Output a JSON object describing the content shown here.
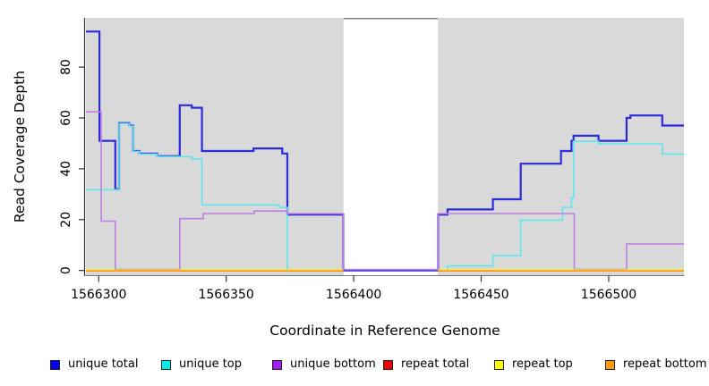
{
  "chart_data": {
    "type": "line",
    "subtype": "step-coverage",
    "title": "",
    "xlabel": "Coordinate in Reference Genome",
    "ylabel": "Read Coverage Depth",
    "xlim": [
      1566295,
      1566529.5
    ],
    "ylim": [
      0,
      99
    ],
    "grid": false,
    "legend_position": "bottom",
    "plot_bg": "#d9d9d9",
    "axis_color": "#333333",
    "x_ticks": [
      {
        "value": 1566300,
        "label": "1566300"
      },
      {
        "value": 1566350,
        "label": "1566350"
      },
      {
        "value": 1566400,
        "label": "1566400"
      },
      {
        "value": 1566450,
        "label": "1566450"
      },
      {
        "value": 1566500,
        "label": "1566500"
      }
    ],
    "y_ticks": [
      {
        "value": 0,
        "label": "0"
      },
      {
        "value": 20,
        "label": "20"
      },
      {
        "value": 40,
        "label": "40"
      },
      {
        "value": 60,
        "label": "60"
      },
      {
        "value": 80,
        "label": "80"
      }
    ],
    "gap_region": {
      "x0": 1566396,
      "x1": 1566433,
      "fill": "#ffffff",
      "top_border": "#808080"
    },
    "series": [
      {
        "name": "unique total",
        "color": "#2b2bdc",
        "width": 2.2,
        "bias": 0,
        "segments": [
          {
            "points": [
              [
                1566295,
                94
              ],
              [
                1566300.3,
                51
              ],
              [
                1566306.5,
                32
              ],
              [
                1566308,
                58
              ],
              [
                1566312,
                57
              ],
              [
                1566313.5,
                47
              ],
              [
                1566316,
                46
              ],
              [
                1566323,
                45
              ],
              [
                1566331.8,
                65
              ],
              [
                1566336.5,
                64
              ],
              [
                1566340.5,
                47
              ],
              [
                1566360.7,
                48
              ],
              [
                1566372,
                46
              ],
              [
                1566374,
                22
              ],
              [
                1566395.9,
                0
              ],
              [
                1566433.1,
                22
              ],
              [
                1566436.8,
                24
              ],
              [
                1566454.6,
                28
              ],
              [
                1566465.5,
                42
              ],
              [
                1566481.3,
                47
              ],
              [
                1566485.4,
                51
              ],
              [
                1566486.2,
                53
              ],
              [
                1566496,
                51
              ],
              [
                1566507,
                60
              ],
              [
                1566508.5,
                61
              ],
              [
                1566521,
                57
              ]
            ],
            "end": 1566529.5
          }
        ]
      },
      {
        "name": "unique top",
        "color": "#5fe5ee",
        "width": 1.6,
        "bias": 0.6,
        "segments": [
          {
            "points": [
              [
                1566295,
                32
              ],
              [
                1566308,
                58
              ],
              [
                1566312,
                57
              ],
              [
                1566313.5,
                47
              ],
              [
                1566316,
                46
              ],
              [
                1566323,
                45
              ],
              [
                1566336.5,
                44
              ],
              [
                1566340.5,
                26
              ],
              [
                1566370.8,
                25
              ],
              [
                1566374,
                0
              ]
            ],
            "end": 1566395.9
          },
          {
            "points": [
              [
                1566433.1,
                0
              ],
              [
                1566436.8,
                2
              ],
              [
                1566454.6,
                6
              ],
              [
                1566465.5,
                20
              ],
              [
                1566481.9,
                25
              ],
              [
                1566485.4,
                29
              ],
              [
                1566486.2,
                51
              ],
              [
                1566496,
                50
              ],
              [
                1566521,
                46
              ]
            ],
            "end": 1566529.5
          }
        ]
      },
      {
        "name": "unique bottom",
        "color": "#bd80e2",
        "width": 1.6,
        "bias": -1.1,
        "segments": [
          {
            "points": [
              [
                1566295,
                62
              ],
              [
                1566301,
                19
              ],
              [
                1566306.5,
                0
              ],
              [
                1566331.8,
                20
              ],
              [
                1566341,
                22
              ],
              [
                1566361,
                23
              ],
              [
                1566374,
                22
              ],
              [
                1566395.9,
                0
              ],
              [
                1566433.1,
                22
              ],
              [
                1566486.5,
                0
              ],
              [
                1566507,
                10
              ]
            ],
            "end": 1566529.5
          }
        ]
      },
      {
        "name": "repeat total",
        "color": "#e60000",
        "width": 1.5,
        "bias": 0,
        "segments": [
          {
            "points": [
              [
                1566295,
                0
              ]
            ],
            "end": 1566395.9
          },
          {
            "points": [
              [
                1566433.1,
                0
              ]
            ],
            "end": 1566529.5
          }
        ]
      },
      {
        "name": "repeat top",
        "color": "#ffff00",
        "width": 1.5,
        "bias": -0.4,
        "segments": [
          {
            "points": [
              [
                1566295,
                0
              ]
            ],
            "end": 1566395.9
          },
          {
            "points": [
              [
                1566433.1,
                0
              ]
            ],
            "end": 1566529.5
          }
        ]
      },
      {
        "name": "repeat bottom",
        "color": "#ff9912",
        "width": 1.8,
        "bias": 0.4,
        "segments": [
          {
            "points": [
              [
                1566295,
                0
              ]
            ],
            "end": 1566395.9
          },
          {
            "points": [
              [
                1566433.1,
                0
              ]
            ],
            "end": 1566529.5
          }
        ]
      }
    ]
  },
  "legend": {
    "items": [
      {
        "label": "unique total",
        "color": "#0000ee"
      },
      {
        "label": "unique top",
        "color": "#00eeee"
      },
      {
        "label": "unique bottom",
        "color": "#a020f0"
      },
      {
        "label": "repeat total",
        "color": "#ee0000"
      },
      {
        "label": "repeat top",
        "color": "#ffff00"
      },
      {
        "label": "repeat bottom",
        "color": "#ff9912"
      }
    ]
  }
}
